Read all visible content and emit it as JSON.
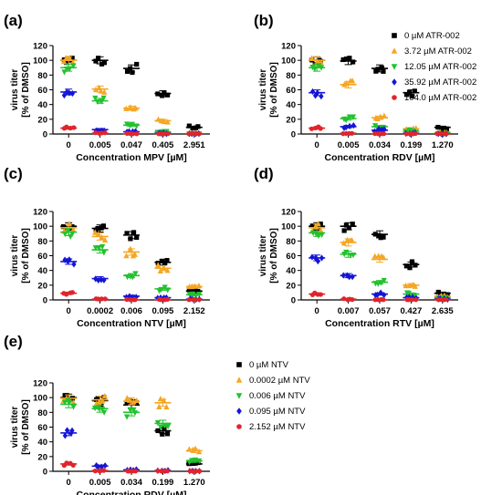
{
  "figure": {
    "legend_atr": [
      {
        "label": "0 µM ATR-002",
        "color": "#000000",
        "marker": "square"
      },
      {
        "label": "3.72 µM ATR-002",
        "color": "#F5A623",
        "marker": "triangle-up"
      },
      {
        "label": "12.05 µM ATR-002",
        "color": "#22C22E",
        "marker": "triangle-down"
      },
      {
        "label": "35.92 µM ATR-002",
        "color": "#1515D6",
        "marker": "diamond"
      },
      {
        "label": "104.0 µM ATR-002",
        "color": "#E0252C",
        "marker": "circle"
      }
    ],
    "legend_ntv": [
      {
        "label": "0 µM NTV",
        "color": "#000000",
        "marker": "square"
      },
      {
        "label": "0.0002 µM NTV",
        "color": "#F5A623",
        "marker": "triangle-up"
      },
      {
        "label": "0.006 µM NTV",
        "color": "#22C22E",
        "marker": "triangle-down"
      },
      {
        "label": "0.095 µM NTV",
        "color": "#1515D6",
        "marker": "diamond"
      },
      {
        "label": "2.152 µM NTV",
        "color": "#E0252C",
        "marker": "circle"
      }
    ]
  },
  "chart_data": [
    {
      "type": "scatter",
      "panel": "(a)",
      "xlabel": "Concentration MPV [µM]",
      "ylabel": "virus titer\n[% of DMSO]",
      "categories": [
        "0",
        "0.005",
        "0.047",
        "0.405",
        "2.951"
      ],
      "ylim": [
        0,
        120
      ],
      "yticks": [
        0,
        20,
        40,
        60,
        80,
        100,
        120
      ],
      "series": [
        {
          "name": "0 µM ATR-002",
          "values": [
            100,
            100,
            89,
            55,
            9
          ]
        },
        {
          "name": "3.72 µM ATR-002",
          "values": [
            100,
            61,
            35,
            18,
            1
          ]
        },
        {
          "name": "12.05 µM ATR-002",
          "values": [
            90,
            45,
            12,
            3,
            0
          ]
        },
        {
          "name": "35.92 µM ATR-002",
          "values": [
            57,
            6,
            3,
            1,
            0
          ]
        },
        {
          "name": "104.0 µM ATR-002",
          "values": [
            8,
            1,
            0,
            0,
            0
          ]
        }
      ]
    },
    {
      "type": "scatter",
      "panel": "(b)",
      "xlabel": "Concentration RDV [µM]",
      "ylabel": "virus titer\n[% of DMSO]",
      "categories": [
        "0",
        "0.005",
        "0.034",
        "0.199",
        "1.270"
      ],
      "ylim": [
        0,
        120
      ],
      "yticks": [
        0,
        20,
        40,
        60,
        80,
        100,
        120
      ],
      "series": [
        {
          "name": "0 µM ATR-002",
          "values": [
            100,
            99,
            89,
            56,
            9
          ]
        },
        {
          "name": "3.72 µM ATR-002",
          "values": [
            100,
            67,
            22,
            7,
            2
          ]
        },
        {
          "name": "12.05 µM ATR-002",
          "values": [
            90,
            21,
            10,
            4,
            1
          ]
        },
        {
          "name": "35.92 µM ATR-002",
          "values": [
            56,
            10,
            5,
            1,
            0
          ]
        },
        {
          "name": "104.0 µM ATR-002",
          "values": [
            8,
            1,
            0,
            0,
            0
          ]
        }
      ]
    },
    {
      "type": "scatter",
      "panel": "(c)",
      "xlabel": "Concentration NTV [µM]",
      "ylabel": "virus titer\n[% of DMSO]",
      "categories": [
        "0",
        "0.0002",
        "0.006",
        "0.095",
        "2.152"
      ],
      "ylim": [
        0,
        120
      ],
      "yticks": [
        0,
        20,
        40,
        60,
        80,
        100,
        120
      ],
      "series": [
        {
          "name": "0 µM ATR-002",
          "values": [
            100,
            97,
            88,
            51,
            12
          ]
        },
        {
          "name": "3.72 µM ATR-002",
          "values": [
            98,
            86,
            65,
            43,
            18
          ]
        },
        {
          "name": "12.05 µM ATR-002",
          "values": [
            92,
            68,
            33,
            15,
            7
          ]
        },
        {
          "name": "35.92 µM ATR-002",
          "values": [
            52,
            29,
            5,
            3,
            1
          ]
        },
        {
          "name": "104.0 µM ATR-002",
          "values": [
            9,
            1,
            0,
            0,
            0
          ]
        }
      ]
    },
    {
      "type": "scatter",
      "panel": "(d)",
      "xlabel": "Concentration RTV [µM]",
      "ylabel": "virus titer\n[% of DMSO]",
      "categories": [
        "0",
        "0.007",
        "0.057",
        "0.427",
        "2.635"
      ],
      "ylim": [
        0,
        120
      ],
      "yticks": [
        0,
        20,
        40,
        60,
        80,
        100,
        120
      ],
      "series": [
        {
          "name": "0 µM ATR-002",
          "values": [
            100,
            100,
            89,
            48,
            9
          ]
        },
        {
          "name": "3.72 µM ATR-002",
          "values": [
            98,
            78,
            55,
            20,
            5
          ]
        },
        {
          "name": "12.05 µM ATR-002",
          "values": [
            91,
            62,
            24,
            8,
            3
          ]
        },
        {
          "name": "35.92 µM ATR-002",
          "values": [
            57,
            33,
            8,
            3,
            1
          ]
        },
        {
          "name": "104.0 µM ATR-002",
          "values": [
            8,
            1,
            0,
            0,
            0
          ]
        }
      ]
    },
    {
      "type": "scatter",
      "panel": "(e)",
      "xlabel": "Concentration RDV [µM]",
      "ylabel": "virus titer\n[% of DMSO]",
      "categories": [
        "0",
        "0.005",
        "0.034",
        "0.199",
        "1.270"
      ],
      "ylim": [
        0,
        120
      ],
      "yticks": [
        0,
        20,
        40,
        60,
        80,
        100,
        120
      ],
      "series": [
        {
          "name": "0 µM NTV",
          "values": [
            100,
            96,
            90,
            55,
            10
          ]
        },
        {
          "name": "0.0002 µM NTV",
          "values": [
            99,
            97,
            95,
            93,
            28
          ]
        },
        {
          "name": "0.006 µM NTV",
          "values": [
            91,
            85,
            80,
            65,
            14
          ]
        },
        {
          "name": "0.095 µM NTV",
          "values": [
            52,
            7,
            2,
            1,
            0
          ]
        },
        {
          "name": "2.152 µM NTV",
          "values": [
            10,
            1,
            0,
            0,
            0
          ]
        }
      ]
    }
  ]
}
